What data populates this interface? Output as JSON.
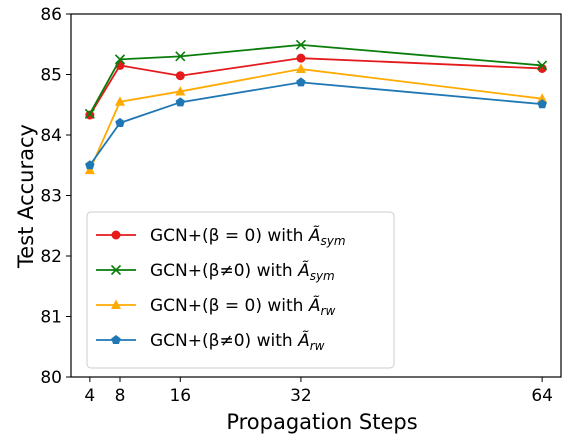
{
  "chart_data": {
    "type": "line",
    "xlabel": "Propagation Steps",
    "ylabel": "Test Accuracy",
    "x": [
      4,
      8,
      16,
      32,
      64
    ],
    "xticks": [
      4,
      8,
      16,
      32,
      64
    ],
    "yticks": [
      80,
      81,
      82,
      83,
      84,
      85,
      86
    ],
    "xlim": [
      1.5,
      66.5
    ],
    "ylim": [
      80,
      86
    ],
    "grid": false,
    "legend_position": "lower-left",
    "series": [
      {
        "name": "GCN+(β = 0) with Ã_sym",
        "label_main": "GCN+(β = 0) with ",
        "label_sub": "sym",
        "color": "#e41a1c",
        "marker": "circle",
        "values": [
          84.33,
          85.15,
          84.98,
          85.27,
          85.1
        ]
      },
      {
        "name": "GCN+(β≠0) with Ã_sym",
        "label_main": "GCN+(β≠0) with ",
        "label_sub": "sym",
        "color": "#0a7d0a",
        "marker": "x",
        "values": [
          84.35,
          85.25,
          85.3,
          85.49,
          85.15
        ]
      },
      {
        "name": "GCN+(β = 0) with Ã_rw",
        "label_main": "GCN+(β = 0) with ",
        "label_sub": "rw",
        "color": "#ffaa00",
        "marker": "triangle",
        "values": [
          83.42,
          84.55,
          84.72,
          85.09,
          84.6
        ]
      },
      {
        "name": "GCN+(β≠0) with Ã_rw",
        "label_main": "GCN+(β≠0) with ",
        "label_sub": "rw",
        "color": "#1f77b4",
        "marker": "pentagon",
        "values": [
          83.5,
          84.2,
          84.54,
          84.87,
          84.51
        ]
      }
    ]
  }
}
